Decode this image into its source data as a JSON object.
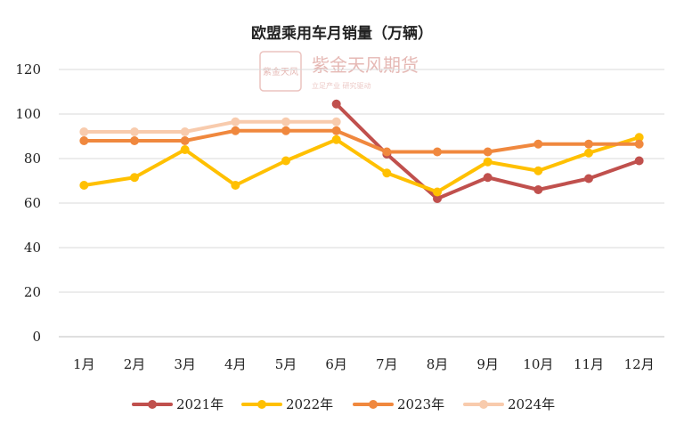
{
  "watermark": {
    "logo_text": "紫金天风",
    "name": "紫金天风期货",
    "slogan": "立足产业 研究驱动"
  },
  "chart_data": {
    "type": "line",
    "title": "欧盟乘用车月销量（万辆）",
    "xlabel": "",
    "ylabel": "",
    "categories": [
      "1月",
      "2月",
      "3月",
      "4月",
      "5月",
      "6月",
      "7月",
      "8月",
      "9月",
      "10月",
      "11月",
      "12月"
    ],
    "ylim": [
      0,
      120
    ],
    "yticks": [
      0,
      20,
      40,
      60,
      80,
      100,
      120
    ],
    "grid": true,
    "legend_position": "bottom",
    "series": [
      {
        "name": "2021年",
        "color": "#c0504d",
        "values": [
          null,
          null,
          null,
          null,
          null,
          104.5,
          82,
          62,
          71.5,
          66,
          71,
          79
        ]
      },
      {
        "name": "2022年",
        "color": "#ffc000",
        "values": [
          68,
          71.5,
          84,
          68,
          79,
          88.5,
          73.5,
          65,
          78.5,
          74.5,
          82.5,
          89.5
        ]
      },
      {
        "name": "2023年",
        "color": "#f0883e",
        "values": [
          88,
          88,
          88,
          92.5,
          92.5,
          92.5,
          83,
          83,
          83,
          86.5,
          86.5,
          86.5
        ]
      },
      {
        "name": "2024年",
        "color": "#f8cbad",
        "values": [
          92,
          92,
          92,
          96.5,
          96.5,
          96.5,
          null,
          null,
          null,
          null,
          null,
          null
        ]
      }
    ]
  }
}
